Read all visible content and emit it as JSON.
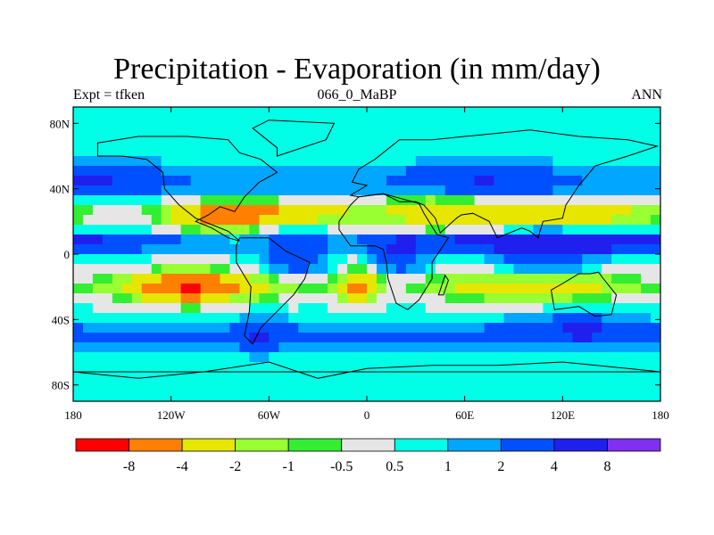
{
  "header": {
    "title": "Precipitation - Evaporation (in mm/day)",
    "left": "Expt = tfken",
    "center": "066_0_MaBP",
    "right": "ANN"
  },
  "chart_data": {
    "type": "heatmap",
    "xlim": [
      -180,
      180
    ],
    "ylim": [
      -90,
      90
    ],
    "x_ticks": [
      {
        "value": -180,
        "label": "180"
      },
      {
        "value": -120,
        "label": "120W"
      },
      {
        "value": -60,
        "label": "60W"
      },
      {
        "value": 0,
        "label": "0"
      },
      {
        "value": 60,
        "label": "60E"
      },
      {
        "value": 120,
        "label": "120E"
      },
      {
        "value": 180,
        "label": "180"
      }
    ],
    "y_ticks": [
      {
        "value": 80,
        "label": "80N"
      },
      {
        "value": 40,
        "label": "40N"
      },
      {
        "value": 0,
        "label": "0"
      },
      {
        "value": -40,
        "label": "40S"
      },
      {
        "value": -80,
        "label": "80S"
      }
    ],
    "levels": [
      -8,
      -4,
      -2,
      -1,
      -0.5,
      0.5,
      1,
      2,
      4,
      8
    ],
    "level_labels": [
      "-8",
      "-4",
      "-2",
      "-1",
      "-0.5",
      "0.5",
      "1",
      "2",
      "4",
      "8"
    ],
    "colors": [
      "#ff0000",
      "#ff8000",
      "#e6e600",
      "#99ff33",
      "#33ee33",
      "#e6e6e6",
      "#00ffe6",
      "#00a6ff",
      "#0050ff",
      "#2020ee",
      "#8030f0"
    ],
    "land_color": "#000000"
  }
}
